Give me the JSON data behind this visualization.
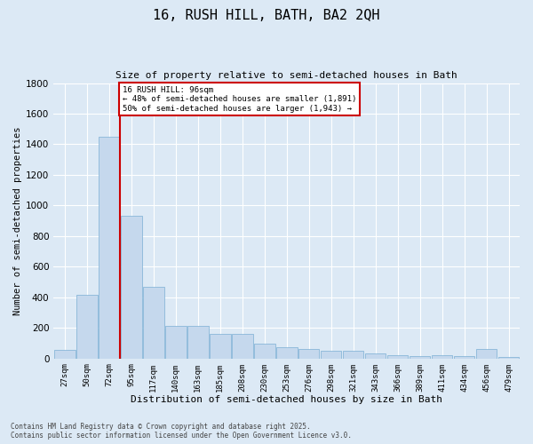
{
  "title": "16, RUSH HILL, BATH, BA2 2QH",
  "subtitle": "Size of property relative to semi-detached houses in Bath",
  "xlabel": "Distribution of semi-detached houses by size in Bath",
  "ylabel": "Number of semi-detached properties",
  "categories": [
    "27sqm",
    "50sqm",
    "72sqm",
    "95sqm",
    "117sqm",
    "140sqm",
    "163sqm",
    "185sqm",
    "208sqm",
    "230sqm",
    "253sqm",
    "276sqm",
    "298sqm",
    "321sqm",
    "343sqm",
    "366sqm",
    "389sqm",
    "411sqm",
    "434sqm",
    "456sqm",
    "479sqm"
  ],
  "values": [
    55,
    415,
    1450,
    930,
    470,
    215,
    215,
    160,
    160,
    95,
    75,
    65,
    50,
    50,
    35,
    20,
    15,
    20,
    15,
    60,
    10
  ],
  "bar_color": "#c5d8ed",
  "bar_edge_color": "#7bafd4",
  "red_line_x": 2.5,
  "annotation_title": "16 RUSH HILL: 96sqm",
  "annotation_line1": "← 48% of semi-detached houses are smaller (1,891)",
  "annotation_line2": "50% of semi-detached houses are larger (1,943) →",
  "annotation_box_color": "#ffffff",
  "annotation_box_edge_color": "#cc0000",
  "red_line_color": "#cc0000",
  "ylim": [
    0,
    1800
  ],
  "yticks": [
    0,
    200,
    400,
    600,
    800,
    1000,
    1200,
    1400,
    1600,
    1800
  ],
  "grid_color": "#ffffff",
  "bg_color": "#dce9f5",
  "footer1": "Contains HM Land Registry data © Crown copyright and database right 2025.",
  "footer2": "Contains public sector information licensed under the Open Government Licence v3.0."
}
